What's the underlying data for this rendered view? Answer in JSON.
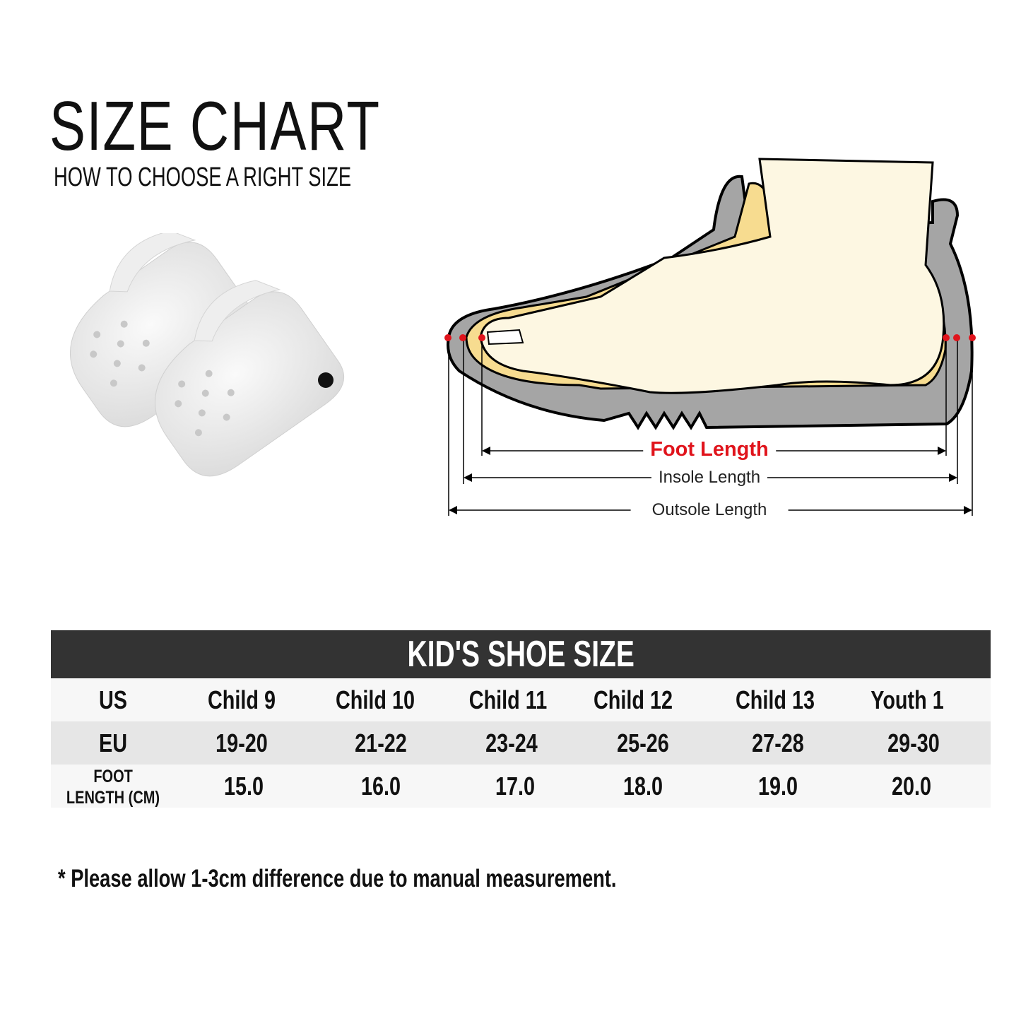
{
  "header": {
    "title": "SIZE CHART",
    "subtitle": "HOW TO CHOOSE A RIGHT SIZE"
  },
  "diagram": {
    "foot_length": "Foot Length",
    "insole_length": "Insole Length",
    "outsole_length": "Outsole Length",
    "accent_color": "#e0141c"
  },
  "table": {
    "title": "KID'S SHOE SIZE",
    "rows": [
      {
        "label": "US",
        "values": [
          "Child 9",
          "Child 10",
          "Child 11",
          "Child 12",
          "Child 13",
          "Youth 1"
        ]
      },
      {
        "label": "EU",
        "values": [
          "19-20",
          "21-22",
          "23-24",
          "25-26",
          "27-28",
          "29-30"
        ]
      },
      {
        "label_line1": "FOOT",
        "label_line2": "LENGTH (CM)",
        "values": [
          "15.0",
          "16.0",
          "17.0",
          "18.0",
          "19.0",
          "20.0"
        ]
      }
    ]
  },
  "note": "* Please allow 1-3cm difference due to manual measurement."
}
